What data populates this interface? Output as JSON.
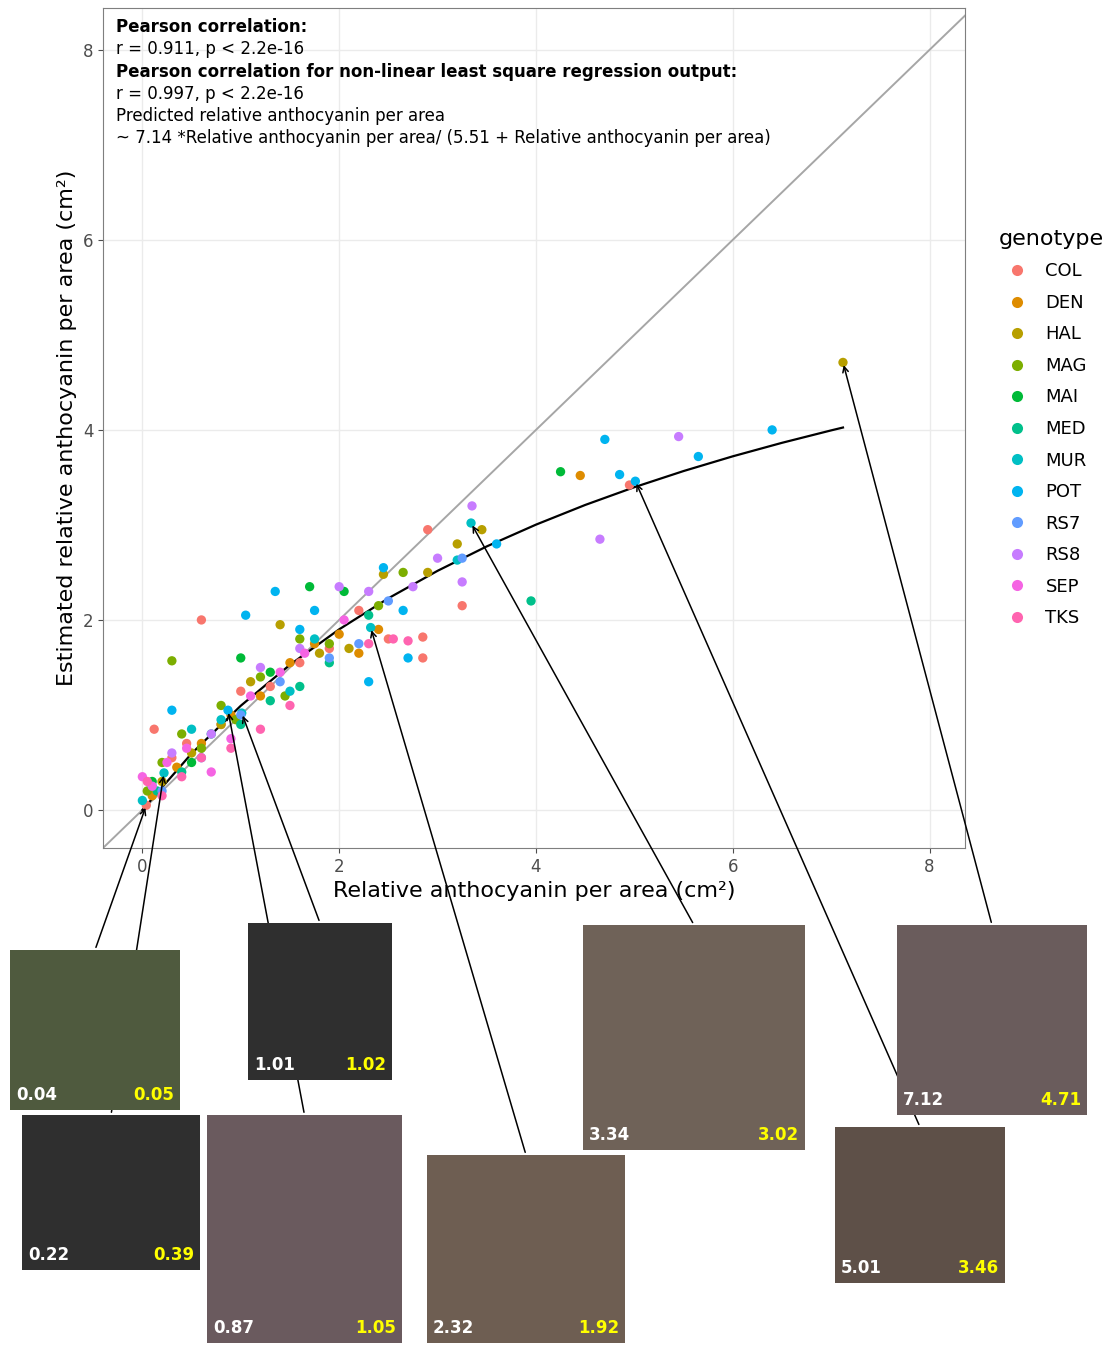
{
  "chart_data": {
    "type": "scatter",
    "x_label": "Relative anthocyanin per area (cm²)",
    "y_label": "Estimated relative anthocyanin per area (cm²)",
    "xlim": [
      -0.4,
      8.36
    ],
    "ylim": [
      -0.4,
      8.44
    ],
    "xticks": [
      0,
      2,
      4,
      6,
      8
    ],
    "yticks": [
      0,
      2,
      4,
      6,
      8
    ],
    "grid": true,
    "legend": "right",
    "legend_title": "genotype",
    "annotation_lines": [
      "Pearson correlation:",
      "r = 0.911, p < 2.2e-16",
      "Pearson correlation for non-linear least square regression output:",
      "r = 0.997, p < 2.2e-16",
      "Predicted relative anthocyanin per area",
      "~ 7.14 *Relative anthocyanin per area/ (5.51 + Relative anthocyanin per area)"
    ],
    "lines": [
      {
        "type": "line",
        "color": "#a6a6a6",
        "x": [
          -0.4,
          8.36
        ],
        "values": [
          -0.4,
          8.36
        ]
      },
      {
        "type": "line",
        "color": "#000000",
        "x": [
          0,
          0.5,
          1,
          1.5,
          2,
          2.5,
          3,
          3.5,
          4,
          4.5,
          5,
          5.5,
          6,
          6.5,
          7,
          7.12
        ],
        "values": [
          0,
          0.594,
          1.097,
          1.528,
          1.901,
          2.228,
          2.517,
          2.774,
          3.003,
          3.21,
          3.397,
          3.567,
          3.722,
          3.864,
          3.995,
          4.025
        ]
      }
    ],
    "series": [
      {
        "name": "COL",
        "color": "#F8766D",
        "x": [
          0.04,
          0.12,
          0.3,
          0.45,
          0.6,
          0.8,
          1.0,
          1.3,
          1.6,
          1.9,
          2.2,
          2.5,
          2.85,
          2.85,
          2.9,
          3.25,
          4.95
        ],
        "values": [
          0.05,
          0.85,
          0.55,
          0.7,
          2.0,
          0.9,
          1.25,
          1.3,
          1.55,
          1.7,
          2.1,
          1.8,
          1.6,
          1.82,
          2.95,
          2.15,
          3.42
        ]
      },
      {
        "name": "DEN",
        "color": "#DE8C00",
        "x": [
          0.1,
          0.35,
          0.6,
          0.9,
          1.2,
          1.5,
          1.75,
          2.0,
          2.2,
          2.4,
          4.45
        ],
        "values": [
          0.15,
          0.45,
          0.7,
          1.0,
          1.2,
          1.55,
          1.75,
          1.85,
          1.65,
          1.9,
          3.52
        ]
      },
      {
        "name": "HAL",
        "color": "#B79F00",
        "x": [
          0.2,
          0.5,
          0.8,
          1.1,
          1.4,
          1.8,
          2.1,
          2.45,
          2.9,
          3.2,
          3.45,
          7.12
        ],
        "values": [
          0.3,
          0.6,
          0.9,
          1.35,
          1.95,
          1.65,
          1.7,
          2.48,
          2.5,
          2.8,
          2.95,
          4.71
        ]
      },
      {
        "name": "MAG",
        "color": "#7CAE00",
        "x": [
          0.05,
          0.2,
          0.3,
          0.4,
          0.6,
          0.8,
          0.95,
          1.2,
          1.45,
          1.6,
          1.9,
          2.4,
          2.65
        ],
        "values": [
          0.2,
          0.5,
          1.57,
          0.8,
          0.65,
          1.1,
          0.95,
          1.4,
          1.2,
          1.8,
          1.75,
          2.15,
          2.5
        ]
      },
      {
        "name": "MAI",
        "color": "#00BA38",
        "x": [
          0.1,
          0.5,
          1.0,
          1.3,
          1.7,
          2.05,
          4.25
        ],
        "values": [
          0.3,
          0.5,
          1.6,
          1.45,
          2.35,
          2.3,
          3.56
        ]
      },
      {
        "name": "MED",
        "color": "#00C08B",
        "x": [
          0.15,
          0.4,
          0.7,
          1.0,
          1.3,
          1.6,
          1.9,
          2.3,
          3.95
        ],
        "values": [
          0.2,
          0.4,
          0.8,
          0.9,
          1.15,
          1.3,
          1.55,
          2.05,
          2.2
        ]
      },
      {
        "name": "MUR",
        "color": "#00BFC4",
        "x": [
          0.0,
          0.22,
          0.5,
          0.8,
          1.01,
          1.5,
          1.75,
          2.32,
          3.2,
          3.34
        ],
        "values": [
          0.1,
          0.39,
          0.85,
          0.95,
          1.02,
          1.25,
          1.8,
          1.92,
          2.63,
          3.02
        ]
      },
      {
        "name": "POT",
        "color": "#00B4F0",
        "x": [
          0.1,
          0.3,
          0.87,
          1.05,
          1.35,
          1.6,
          1.75,
          2.3,
          2.45,
          2.65,
          2.7,
          3.6,
          4.7,
          4.85,
          5.01,
          5.65,
          6.4
        ],
        "values": [
          0.25,
          1.05,
          1.05,
          2.05,
          2.3,
          1.9,
          2.1,
          1.35,
          2.55,
          2.1,
          1.6,
          2.8,
          3.9,
          3.53,
          3.46,
          3.72,
          4.0
        ]
      },
      {
        "name": "RS7",
        "color": "#619CFF",
        "x": [
          0.2,
          0.6,
          1.0,
          1.4,
          1.9,
          2.2,
          2.5,
          3.25
        ],
        "values": [
          0.2,
          0.55,
          1.0,
          1.35,
          1.6,
          1.75,
          2.2,
          2.65
        ]
      },
      {
        "name": "RS8",
        "color": "#C77CFF",
        "x": [
          0.3,
          0.7,
          1.2,
          1.6,
          2.0,
          2.3,
          2.75,
          3.0,
          3.25,
          3.35,
          4.65,
          5.45
        ],
        "values": [
          0.6,
          0.8,
          1.5,
          1.7,
          2.35,
          2.3,
          2.35,
          2.65,
          2.4,
          3.2,
          2.85,
          3.93
        ]
      },
      {
        "name": "SEP",
        "color": "#F564E3",
        "x": [
          0.0,
          0.1,
          0.25,
          0.45,
          0.7,
          0.9,
          1.1,
          1.4,
          1.65,
          2.05
        ],
        "values": [
          0.35,
          0.25,
          0.5,
          0.65,
          0.4,
          0.75,
          1.2,
          1.45,
          1.65,
          2.0
        ]
      },
      {
        "name": "TKS",
        "color": "#FF64B0",
        "x": [
          0.05,
          0.2,
          0.4,
          0.6,
          0.9,
          1.2,
          1.5,
          2.3,
          2.55,
          2.7
        ],
        "values": [
          0.3,
          0.15,
          0.35,
          0.55,
          0.65,
          0.85,
          1.1,
          1.75,
          1.8,
          1.78
        ]
      }
    ],
    "insets": [
      {
        "x": 0.04,
        "value": 0.05
      },
      {
        "x": 0.22,
        "value": 0.39
      },
      {
        "x": 0.87,
        "value": 1.05
      },
      {
        "x": 1.01,
        "value": 1.02
      },
      {
        "x": 2.32,
        "value": 1.92
      },
      {
        "x": 3.34,
        "value": 3.02
      },
      {
        "x": 5.01,
        "value": 3.46
      },
      {
        "x": 7.12,
        "value": 4.71
      }
    ]
  }
}
